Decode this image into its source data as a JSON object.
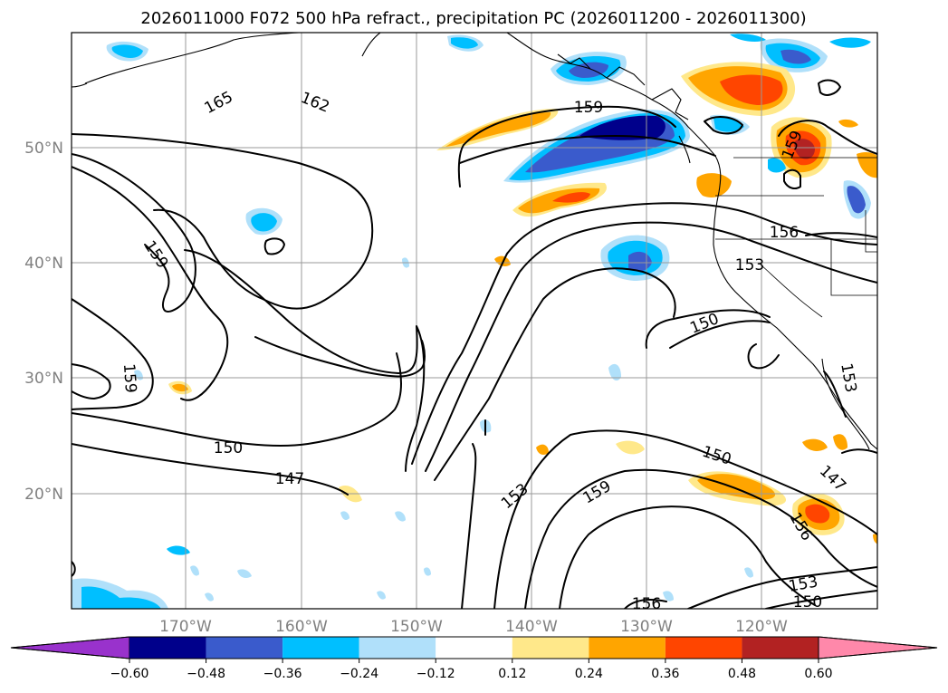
{
  "title": "2026011000 F072 500 hPa refract., precipitation PC (2026011200 - 2026011300)",
  "lat_labels": [
    "50°N",
    "40°N",
    "30°N",
    "20°N"
  ],
  "lon_labels": [
    "170°W",
    "160°W",
    "150°W",
    "140°W",
    "130°W",
    "120°W"
  ],
  "colorbar": {
    "ticks": [
      "−0.60",
      "−0.48",
      "−0.36",
      "−0.24",
      "−0.12",
      "0.12",
      "0.24",
      "0.36",
      "0.48",
      "0.60"
    ],
    "colors": [
      "#9932cc",
      "#00008b",
      "#3a5bcc",
      "#00bfff",
      "#b0e0fa",
      "#ffffff",
      "#ffe88a",
      "#ffa500",
      "#ff4500",
      "#b22222",
      "#ff88aa"
    ]
  },
  "contour_labels": [
    {
      "text": "165"
    },
    {
      "text": "162"
    },
    {
      "text": "159"
    },
    {
      "text": "159"
    },
    {
      "text": "159"
    },
    {
      "text": "159"
    },
    {
      "text": "156"
    },
    {
      "text": "153"
    },
    {
      "text": "150"
    },
    {
      "text": "150"
    },
    {
      "text": "147"
    },
    {
      "text": "153"
    },
    {
      "text": "159"
    },
    {
      "text": "150"
    },
    {
      "text": "147"
    },
    {
      "text": "156"
    },
    {
      "text": "153"
    },
    {
      "text": "153"
    },
    {
      "text": "150"
    },
    {
      "text": "156"
    }
  ]
}
